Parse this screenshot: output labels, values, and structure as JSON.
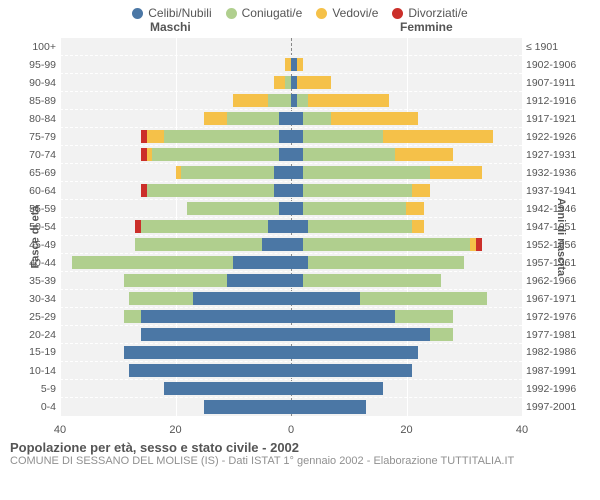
{
  "legend": [
    {
      "label": "Celibi/Nubili",
      "color": "#4b77a5"
    },
    {
      "label": "Coniugati/e",
      "color": "#b0cf8e"
    },
    {
      "label": "Vedovi/e",
      "color": "#f5c149"
    },
    {
      "label": "Divorziati/e",
      "color": "#cb2f2a"
    }
  ],
  "header_male": "Maschi",
  "header_female": "Femmine",
  "y_left_title": "Fasce di età",
  "y_right_title": "Anni di nascita",
  "x_max": 40,
  "x_ticks": [
    40,
    20,
    0,
    20,
    40
  ],
  "colors": {
    "celibi": "#4b77a5",
    "coniugati": "#b0cf8e",
    "vedovi": "#f5c149",
    "divorziati": "#cb2f2a",
    "plot_bg": "#f2f2f2",
    "grid": "#ffffff"
  },
  "footer_title": "Popolazione per età, sesso e stato civile - 2002",
  "footer_sub": "COMUNE DI SESSANO DEL MOLISE (IS) - Dati ISTAT 1° gennaio 2002 - Elaborazione TUTTITALIA.IT",
  "rows": [
    {
      "age": "100+",
      "birth": "≤ 1901",
      "m": {
        "c": 0,
        "g": 0,
        "v": 0,
        "d": 0
      },
      "f": {
        "c": 0,
        "g": 0,
        "v": 0,
        "d": 0
      }
    },
    {
      "age": "95-99",
      "birth": "1902-1906",
      "m": {
        "c": 0,
        "g": 0,
        "v": 1,
        "d": 0
      },
      "f": {
        "c": 1,
        "g": 0,
        "v": 1,
        "d": 0
      }
    },
    {
      "age": "90-94",
      "birth": "1907-1911",
      "m": {
        "c": 0,
        "g": 1,
        "v": 2,
        "d": 0
      },
      "f": {
        "c": 1,
        "g": 0,
        "v": 6,
        "d": 0
      }
    },
    {
      "age": "85-89",
      "birth": "1912-1916",
      "m": {
        "c": 0,
        "g": 4,
        "v": 6,
        "d": 0
      },
      "f": {
        "c": 1,
        "g": 2,
        "v": 14,
        "d": 0
      }
    },
    {
      "age": "80-84",
      "birth": "1917-1921",
      "m": {
        "c": 2,
        "g": 9,
        "v": 4,
        "d": 0
      },
      "f": {
        "c": 2,
        "g": 5,
        "v": 15,
        "d": 0
      }
    },
    {
      "age": "75-79",
      "birth": "1922-1926",
      "m": {
        "c": 2,
        "g": 20,
        "v": 3,
        "d": 1
      },
      "f": {
        "c": 2,
        "g": 14,
        "v": 19,
        "d": 0
      }
    },
    {
      "age": "70-74",
      "birth": "1927-1931",
      "m": {
        "c": 2,
        "g": 22,
        "v": 1,
        "d": 1
      },
      "f": {
        "c": 2,
        "g": 16,
        "v": 10,
        "d": 0
      }
    },
    {
      "age": "65-69",
      "birth": "1932-1936",
      "m": {
        "c": 3,
        "g": 16,
        "v": 1,
        "d": 0
      },
      "f": {
        "c": 2,
        "g": 22,
        "v": 9,
        "d": 0
      }
    },
    {
      "age": "60-64",
      "birth": "1937-1941",
      "m": {
        "c": 3,
        "g": 22,
        "v": 0,
        "d": 1
      },
      "f": {
        "c": 2,
        "g": 19,
        "v": 3,
        "d": 0
      }
    },
    {
      "age": "55-59",
      "birth": "1942-1946",
      "m": {
        "c": 2,
        "g": 16,
        "v": 0,
        "d": 0
      },
      "f": {
        "c": 2,
        "g": 18,
        "v": 3,
        "d": 0
      }
    },
    {
      "age": "50-54",
      "birth": "1947-1951",
      "m": {
        "c": 4,
        "g": 22,
        "v": 0,
        "d": 1
      },
      "f": {
        "c": 3,
        "g": 18,
        "v": 2,
        "d": 0
      }
    },
    {
      "age": "45-49",
      "birth": "1952-1956",
      "m": {
        "c": 5,
        "g": 22,
        "v": 0,
        "d": 0
      },
      "f": {
        "c": 2,
        "g": 29,
        "v": 1,
        "d": 1
      }
    },
    {
      "age": "40-44",
      "birth": "1957-1961",
      "m": {
        "c": 10,
        "g": 28,
        "v": 0,
        "d": 0
      },
      "f": {
        "c": 3,
        "g": 27,
        "v": 0,
        "d": 0
      }
    },
    {
      "age": "35-39",
      "birth": "1962-1966",
      "m": {
        "c": 11,
        "g": 18,
        "v": 0,
        "d": 0
      },
      "f": {
        "c": 2,
        "g": 24,
        "v": 0,
        "d": 0
      }
    },
    {
      "age": "30-34",
      "birth": "1967-1971",
      "m": {
        "c": 17,
        "g": 11,
        "v": 0,
        "d": 0
      },
      "f": {
        "c": 12,
        "g": 22,
        "v": 0,
        "d": 0
      }
    },
    {
      "age": "25-29",
      "birth": "1972-1976",
      "m": {
        "c": 26,
        "g": 3,
        "v": 0,
        "d": 0
      },
      "f": {
        "c": 18,
        "g": 10,
        "v": 0,
        "d": 0
      }
    },
    {
      "age": "20-24",
      "birth": "1977-1981",
      "m": {
        "c": 26,
        "g": 0,
        "v": 0,
        "d": 0
      },
      "f": {
        "c": 24,
        "g": 4,
        "v": 0,
        "d": 0
      }
    },
    {
      "age": "15-19",
      "birth": "1982-1986",
      "m": {
        "c": 29,
        "g": 0,
        "v": 0,
        "d": 0
      },
      "f": {
        "c": 22,
        "g": 0,
        "v": 0,
        "d": 0
      }
    },
    {
      "age": "10-14",
      "birth": "1987-1991",
      "m": {
        "c": 28,
        "g": 0,
        "v": 0,
        "d": 0
      },
      "f": {
        "c": 21,
        "g": 0,
        "v": 0,
        "d": 0
      }
    },
    {
      "age": "5-9",
      "birth": "1992-1996",
      "m": {
        "c": 22,
        "g": 0,
        "v": 0,
        "d": 0
      },
      "f": {
        "c": 16,
        "g": 0,
        "v": 0,
        "d": 0
      }
    },
    {
      "age": "0-4",
      "birth": "1997-2001",
      "m": {
        "c": 15,
        "g": 0,
        "v": 0,
        "d": 0
      },
      "f": {
        "c": 13,
        "g": 0,
        "v": 0,
        "d": 0
      }
    }
  ]
}
